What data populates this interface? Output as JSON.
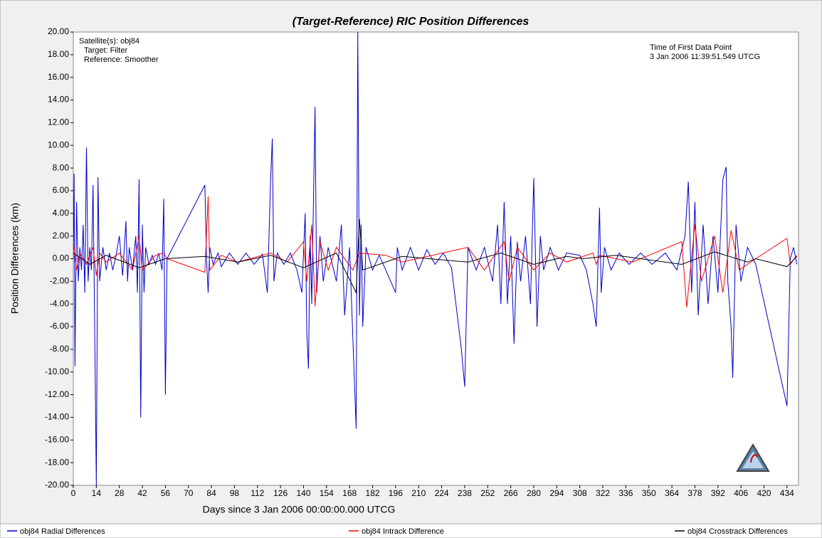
{
  "chart_data": {
    "type": "line",
    "title": "(Target-Reference) RIC Position Differences",
    "x_label": "Days since 3 Jan 2006 00:00:00.000 UTCG",
    "y_label": "Position Differences (km)",
    "annotations_left": [
      "Satellite(s): obj84",
      "Target: Filter",
      "Reference: Smoother"
    ],
    "annotations_right": [
      "Time of First Data Point",
      "3 Jan 2006 11:39:51.549 UTCG"
    ],
    "xlim": [
      0,
      441
    ],
    "ylim": [
      -20,
      20
    ],
    "xticks": [
      0,
      14,
      28,
      42,
      56,
      70,
      84,
      98,
      112,
      126,
      140,
      154,
      168,
      182,
      196,
      210,
      224,
      238,
      252,
      266,
      280,
      294,
      308,
      322,
      336,
      350,
      364,
      378,
      392,
      406,
      420,
      434
    ],
    "yticks": [
      {
        "value": -20,
        "label": "-20.00"
      },
      {
        "value": -18,
        "label": "-18.00"
      },
      {
        "value": -16,
        "label": "-16.00"
      },
      {
        "value": -14,
        "label": "-14.00"
      },
      {
        "value": -12,
        "label": "-12.00"
      },
      {
        "value": -10,
        "label": "-10.00"
      },
      {
        "value": -8,
        "label": "-8.00"
      },
      {
        "value": -6,
        "label": "-6.00"
      },
      {
        "value": -4,
        "label": "-4.00"
      },
      {
        "value": -2,
        "label": "-2.00"
      },
      {
        "value": 0,
        "label": "0.00"
      },
      {
        "value": 2,
        "label": "2.00"
      },
      {
        "value": 4,
        "label": "4.00"
      },
      {
        "value": 6,
        "label": "6.00"
      },
      {
        "value": 8,
        "label": "8.00"
      },
      {
        "value": 10,
        "label": "10.00"
      },
      {
        "value": 12,
        "label": "12.00"
      },
      {
        "value": 14,
        "label": "14.00"
      },
      {
        "value": 16,
        "label": "16.00"
      },
      {
        "value": 18,
        "label": "18.00"
      },
      {
        "value": 20,
        "label": "20.00"
      }
    ],
    "series": [
      {
        "name": "obj84 Radial Differences",
        "color": "#0000cc",
        "x": [
          0,
          0.5,
          1,
          2,
          3,
          4,
          5,
          6,
          7,
          8,
          9,
          10,
          11,
          12,
          13,
          14,
          15,
          16,
          18,
          20,
          22,
          24,
          26,
          28,
          30,
          32,
          33,
          34,
          36,
          38,
          39,
          40,
          41,
          42,
          43,
          44,
          46,
          48,
          50,
          52,
          54,
          55,
          56,
          57,
          80,
          81,
          82,
          83,
          85,
          88,
          90,
          95,
          100,
          105,
          110,
          115,
          118,
          120,
          121,
          122,
          124,
          128,
          132,
          136,
          139,
          141,
          142,
          143,
          144,
          145,
          147,
          148,
          150,
          152,
          155,
          160,
          163,
          165,
          168,
          172,
          173,
          174,
          175,
          176,
          178,
          182,
          186,
          190,
          196,
          197,
          200,
          205,
          210,
          215,
          220,
          225,
          230,
          236,
          238,
          240,
          245,
          250,
          255,
          258,
          260,
          262,
          264,
          266,
          268,
          270,
          272,
          275,
          278,
          280,
          282,
          284,
          286,
          290,
          295,
          300,
          308,
          312,
          316,
          318,
          320,
          321,
          323,
          327,
          332,
          338,
          345,
          352,
          360,
          367,
          372,
          374,
          376,
          378,
          380,
          383,
          386,
          389,
          392,
          395,
          397,
          398,
          400,
          401,
          403,
          406,
          410,
          415,
          434,
          436,
          438,
          440
        ],
        "values": [
          0,
          7.5,
          -9.5,
          5,
          -2,
          1,
          -1,
          3,
          -3,
          9.8,
          -2,
          1,
          -1,
          6.5,
          -6,
          -20,
          7.2,
          -2,
          1,
          -1,
          0.5,
          -1,
          0.3,
          2,
          -1.5,
          3.3,
          -2,
          1,
          -1,
          2,
          -3,
          7,
          -14,
          3,
          -3,
          1,
          -0.5,
          0.3,
          -0.5,
          0.5,
          -1,
          5.3,
          -12,
          0,
          6.5,
          0,
          -3,
          1,
          -0.5,
          0.5,
          -0.7,
          0.5,
          -0.5,
          0.5,
          -0.5,
          0.4,
          -3,
          7,
          10.6,
          -2,
          0.5,
          -0.5,
          0.5,
          -1,
          -3,
          4,
          -6.5,
          -9.7,
          2,
          -4,
          13.4,
          -3,
          2,
          -2,
          1,
          -2,
          3,
          -5,
          1,
          -15,
          20,
          -5,
          3,
          -6,
          1,
          -1,
          0.3,
          -1,
          -3,
          1,
          -1,
          1,
          -1,
          0.8,
          -0.5,
          0.5,
          -0.8,
          -8,
          -11.3,
          1,
          -1,
          1,
          -2,
          3,
          -4,
          5,
          -4,
          2,
          -7.5,
          1.5,
          -2,
          2,
          -4,
          7.1,
          -6,
          2,
          -1,
          1,
          -1,
          0.5,
          0.3,
          -1,
          -4,
          -6,
          4.5,
          -3,
          1,
          -1,
          0.5,
          -0.5,
          0.5,
          -0.5,
          0.5,
          -1,
          2,
          6.8,
          -3,
          5,
          -5,
          3,
          -4,
          2,
          -3,
          7,
          8.1,
          -2,
          -6,
          -10.5,
          3,
          -2,
          1,
          -0.5,
          -13,
          0,
          1,
          -0.5
        ]
      },
      {
        "name": "obj84 Intrack Difference",
        "color": "#ff0000",
        "x": [
          0,
          2,
          4,
          8,
          12,
          14,
          16,
          20,
          28,
          36,
          40,
          42,
          50,
          55,
          57,
          80,
          82,
          83,
          90,
          100,
          120,
          130,
          140,
          142,
          145,
          147,
          150,
          155,
          160,
          170,
          174,
          190,
          200,
          240,
          250,
          262,
          265,
          270,
          280,
          290,
          300,
          316,
          318,
          320,
          340,
          370,
          373,
          378,
          382,
          390,
          395,
          400,
          405,
          415,
          434,
          436,
          440
        ],
        "values": [
          1.5,
          -1,
          0.5,
          -0.5,
          1,
          -1.5,
          0.5,
          -0.3,
          0.5,
          -1,
          2,
          -1,
          0.3,
          0.5,
          0,
          -1.2,
          5.5,
          -1,
          0.3,
          -0.3,
          0.5,
          -0.3,
          1.5,
          -2,
          3,
          -4.2,
          1.5,
          -1,
          1,
          -1,
          0.5,
          0.3,
          -0.3,
          1,
          -1,
          1.5,
          -2,
          1,
          -1,
          0.5,
          -0.3,
          0.5,
          -0.5,
          0.3,
          -0.3,
          1.5,
          -4.3,
          3,
          -2,
          2,
          -3,
          2.5,
          -1,
          0,
          1.8,
          -0.5,
          0.3
        ]
      },
      {
        "name": "obj84 Crosstrack Differences",
        "color": "#000000",
        "x": [
          0,
          10,
          20,
          40,
          56,
          80,
          100,
          120,
          140,
          160,
          172,
          174,
          176,
          200,
          240,
          260,
          280,
          300,
          310,
          330,
          370,
          390,
          410,
          415,
          434,
          440
        ],
        "values": [
          0.5,
          -0.5,
          0.3,
          -0.8,
          0,
          0.2,
          -0.3,
          0.3,
          -0.8,
          0.5,
          -3,
          3.5,
          -1,
          0.2,
          -0.3,
          0.5,
          -0.5,
          0.2,
          0,
          0.3,
          -0.5,
          0.6,
          -0.3,
          0,
          -0.7,
          0.2
        ]
      }
    ]
  }
}
